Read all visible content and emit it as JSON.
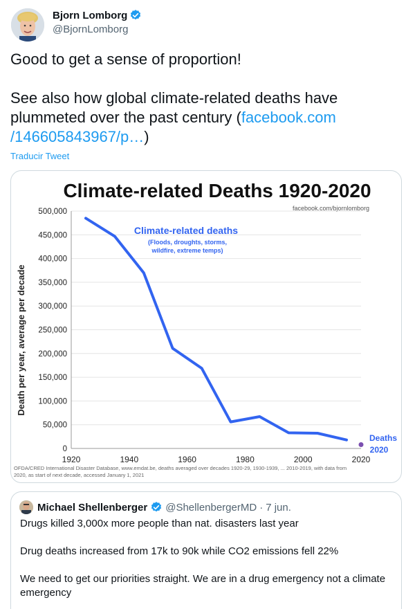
{
  "tweet": {
    "author_name": "Bjorn Lomborg",
    "author_handle": "@BjornLomborg",
    "text_line1": "Good to get a sense of proportion!",
    "text_line2a": "See also how global climate-related deaths have",
    "text_line2b": "plummeted over the past century (",
    "link_part1": "facebook.com",
    "link_part2": "/146605843967/p…",
    "text_close": ")",
    "translate_label": "Traducir Tweet"
  },
  "chart_data": {
    "type": "line",
    "title": "Climate-related Deaths 1920-2020",
    "source_tag": "facebook.com/bjornlomborg",
    "ylabel": "Death per year, average per decade",
    "xlabel": "",
    "xlim": [
      1920,
      2020
    ],
    "ylim": [
      0,
      500000
    ],
    "x_ticks": [
      "1920",
      "1940",
      "1960",
      "1980",
      "2000",
      "2020"
    ],
    "y_ticks": [
      "0",
      "50,000",
      "100,000",
      "150,000",
      "200,000",
      "250,000",
      "300,000",
      "350,000",
      "400,000",
      "450,000",
      "500,000"
    ],
    "series": [
      {
        "name": "Climate-related deaths",
        "color": "#3264f0",
        "x": [
          1925,
          1935,
          1945,
          1955,
          1965,
          1975,
          1985,
          1995,
          2005,
          2015
        ],
        "y": [
          485000,
          447000,
          370000,
          211000,
          169000,
          56000,
          67000,
          33000,
          32000,
          18000
        ]
      }
    ],
    "series_annotation_line1": "Climate-related deaths",
    "series_annotation_line2": "(Floods, droughts, storms,",
    "series_annotation_line3": "wildfire, extreme temps)",
    "point_2020": {
      "x": 2020,
      "y": 8000,
      "label_line1": "Deaths",
      "label_line2": "2020",
      "color": "#7b4fb0"
    },
    "grid": true,
    "footnote_line1": "OFDA/CRED International Disaster Database, www.emdat.be, deaths averaged over decades 1920-29, 1930-1939, ... 2010-2019, with data from",
    "footnote_line2": "2020, as start of next decade, accessed January 1, 2021"
  },
  "quote": {
    "author_name": "Michael Shellenberger",
    "author_handle": "@ShellenbergerMD",
    "separator": "·",
    "date": "7 jun.",
    "line1": "Drugs killed 3,000x more people than nat. disasters last year",
    "line2": "Drug deaths increased from 17k to 90k while CO2 emissions fell 22%",
    "line3": "We need to get our priorities straight. We are in a drug emergency not a climate",
    "line4": "emergency"
  },
  "colors": {
    "accent": "#1d9bf0",
    "verified": "#1d9bf0",
    "line": "#3264f0"
  }
}
